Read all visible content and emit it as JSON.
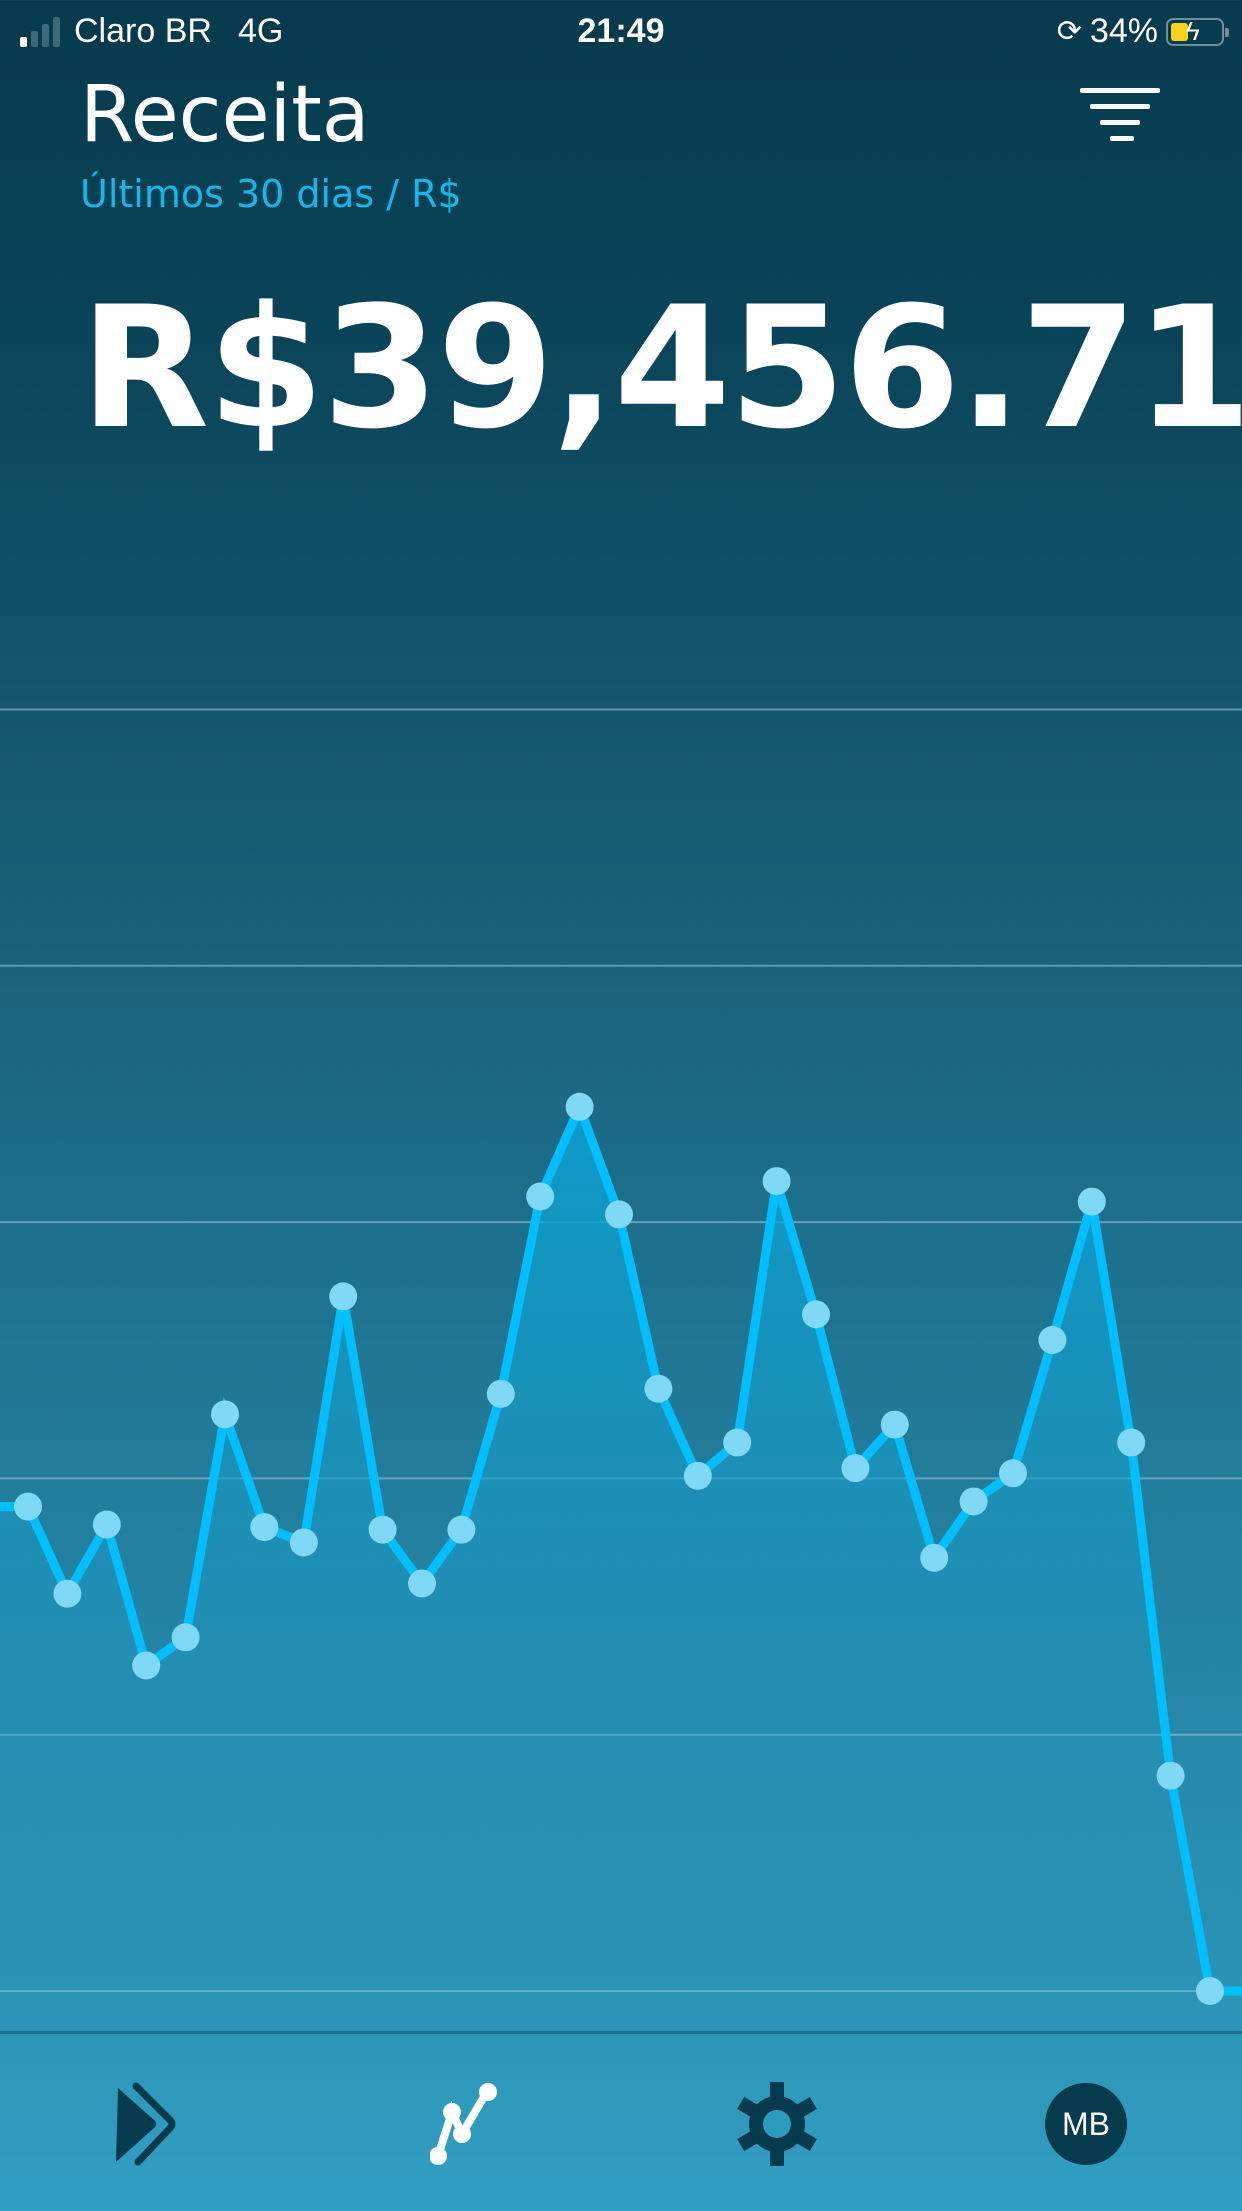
{
  "status_bar": {
    "carrier": "Claro BR",
    "network": "4G",
    "time": "21:49",
    "battery_percent": "34%",
    "signal_bars": 1,
    "battery_charging": true
  },
  "header": {
    "title": "Receita",
    "subtitle": "Últimos 30 dias / R$",
    "filter_icon": "filter-icon"
  },
  "summary": {
    "total": "R$39,456.71"
  },
  "colors": {
    "line": "#00bfff",
    "point": "#7fd8f5",
    "background_top": "#063a4d",
    "background_bottom": "#309dc1",
    "accent_text": "#12b8ea"
  },
  "chart_data": {
    "type": "area",
    "title": "",
    "xlabel": "",
    "ylabel": "",
    "grid": true,
    "gridline_count": 6,
    "ylim": [
      0,
      5
    ],
    "x": [
      1,
      2,
      3,
      4,
      5,
      6,
      7,
      8,
      9,
      10,
      11,
      12,
      13,
      14,
      15,
      16,
      17,
      18,
      19,
      20,
      21,
      22,
      23,
      24,
      25,
      26,
      27,
      28,
      29,
      30,
      31
    ],
    "values": [
      1.89,
      1.55,
      1.82,
      1.27,
      1.38,
      2.25,
      1.81,
      1.75,
      2.71,
      1.8,
      1.59,
      1.8,
      2.33,
      3.1,
      3.45,
      3.03,
      2.35,
      2.01,
      2.14,
      3.16,
      2.64,
      2.04,
      2.21,
      1.69,
      1.91,
      2.02,
      2.54,
      3.08,
      2.14,
      0.84,
      0
    ]
  },
  "nav": {
    "items": [
      {
        "icon": "forward-icon",
        "active": false
      },
      {
        "icon": "line-chart-icon",
        "active": true
      },
      {
        "icon": "gear-icon",
        "active": false
      },
      {
        "avatar": "MB"
      }
    ]
  }
}
